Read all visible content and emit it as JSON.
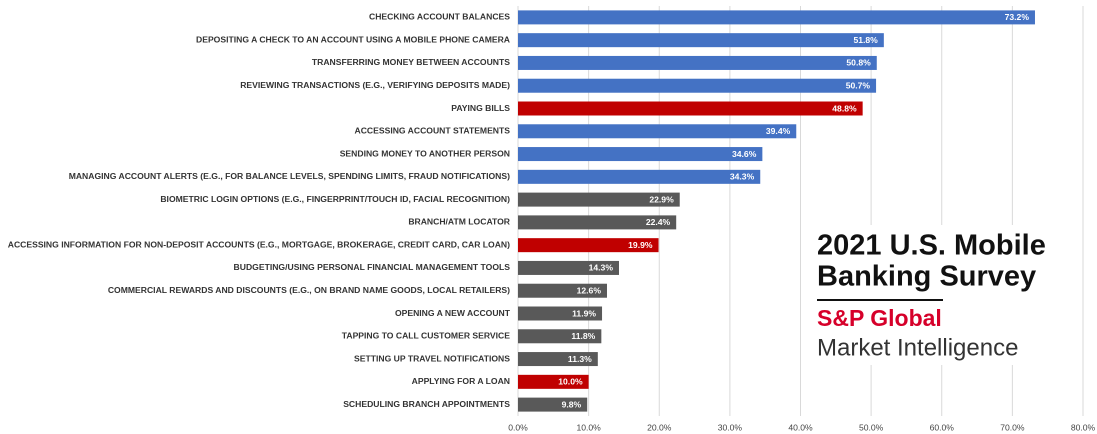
{
  "chart_data": {
    "type": "bar",
    "orientation": "horizontal",
    "categories": [
      "CHECKING ACCOUNT BALANCES",
      "DEPOSITING A CHECK TO AN ACCOUNT USING A MOBILE PHONE CAMERA",
      "TRANSFERRING MONEY BETWEEN ACCOUNTS",
      "REVIEWING TRANSACTIONS (E.G., VERIFYING DEPOSITS MADE)",
      "PAYING BILLS",
      "ACCESSING ACCOUNT STATEMENTS",
      "SENDING MONEY TO ANOTHER PERSON",
      "MANAGING ACCOUNT ALERTS (E.G., FOR BALANCE LEVELS, SPENDING LIMITS, FRAUD NOTIFICATIONS)",
      "BIOMETRIC LOGIN OPTIONS (E.G., FINGERPRINT/TOUCH ID, FACIAL RECOGNITION)",
      "BRANCH/ATM LOCATOR",
      "ACCESSING INFORMATION FOR NON-DEPOSIT ACCOUNTS (E.G., MORTGAGE, BROKERAGE, CREDIT CARD, CAR LOAN)",
      "BUDGETING/USING PERSONAL FINANCIAL MANAGEMENT TOOLS",
      "COMMERCIAL REWARDS AND DISCOUNTS (E.G., ON BRAND NAME GOODS, LOCAL RETAILERS)",
      "OPENING A NEW ACCOUNT",
      "TAPPING TO CALL CUSTOMER SERVICE",
      "SETTING UP TRAVEL NOTIFICATIONS",
      "APPLYING FOR A LOAN",
      "SCHEDULING BRANCH APPOINTMENTS"
    ],
    "values": [
      73.2,
      51.8,
      50.8,
      50.7,
      48.8,
      39.4,
      34.6,
      34.3,
      22.9,
      22.4,
      19.9,
      14.3,
      12.6,
      11.9,
      11.8,
      11.3,
      10.0,
      9.8
    ],
    "value_labels": [
      "73.2%",
      "51.8%",
      "50.8%",
      "50.7%",
      "48.8%",
      "39.4%",
      "34.6%",
      "34.3%",
      "22.9%",
      "22.4%",
      "19.9%",
      "14.3%",
      "12.6%",
      "11.9%",
      "11.8%",
      "11.3%",
      "10.0%",
      "9.8%"
    ],
    "colors": [
      "#4472c4",
      "#4472c4",
      "#4472c4",
      "#4472c4",
      "#c00000",
      "#4472c4",
      "#4472c4",
      "#4472c4",
      "#595959",
      "#595959",
      "#c00000",
      "#595959",
      "#595959",
      "#595959",
      "#595959",
      "#595959",
      "#c00000",
      "#595959"
    ],
    "xlim": [
      0,
      80
    ],
    "xticks": [
      {
        "value": 0,
        "label": "0.0%"
      },
      {
        "value": 10,
        "label": "10.0%"
      },
      {
        "value": 20,
        "label": "20.0%"
      },
      {
        "value": 30,
        "label": "30.0%"
      },
      {
        "value": 40,
        "label": "40.0%"
      },
      {
        "value": 50,
        "label": "50.0%"
      },
      {
        "value": 60,
        "label": "60.0%"
      },
      {
        "value": 70,
        "label": "70.0%"
      },
      {
        "value": 80,
        "label": "80.0%"
      }
    ],
    "grid": true,
    "annotations": [
      "2021 U.S. Mobile",
      "Banking Survey",
      "S&P Global",
      "Market Intelligence"
    ]
  }
}
